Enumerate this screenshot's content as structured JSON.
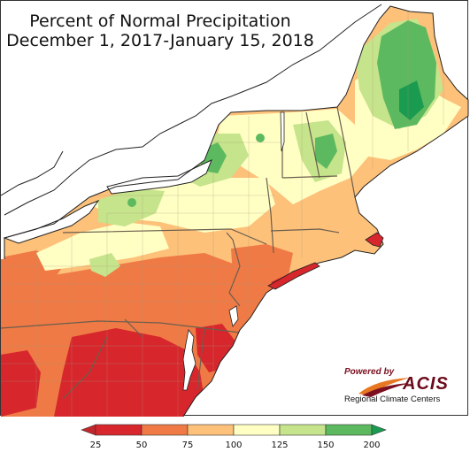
{
  "title": {
    "line1": "Percent of Normal Precipitation",
    "line2": "December 1, 2017-January 15, 2018"
  },
  "logo": {
    "powered_by": "Powered by",
    "brand": "ACIS",
    "subtitle": "Regional Climate Centers"
  },
  "legend": {
    "ticks": [
      "25",
      "50",
      "75",
      "100",
      "125",
      "150",
      "200"
    ],
    "bins": [
      {
        "range": "<25",
        "color": "#c1272d"
      },
      {
        "range": "25-50",
        "color": "#d7262c"
      },
      {
        "range": "50-75",
        "color": "#ef7a45"
      },
      {
        "range": "75-100",
        "color": "#fdc17a"
      },
      {
        "range": "100-125",
        "color": "#ffffc4"
      },
      {
        "range": "125-150",
        "color": "#c5e48b"
      },
      {
        "range": "150-200",
        "color": "#5db95f"
      },
      {
        "range": ">200",
        "color": "#1a9b50"
      }
    ]
  },
  "colors": {
    "water": "#ffffff",
    "border": "#8a7a66",
    "coast": "#222222"
  }
}
